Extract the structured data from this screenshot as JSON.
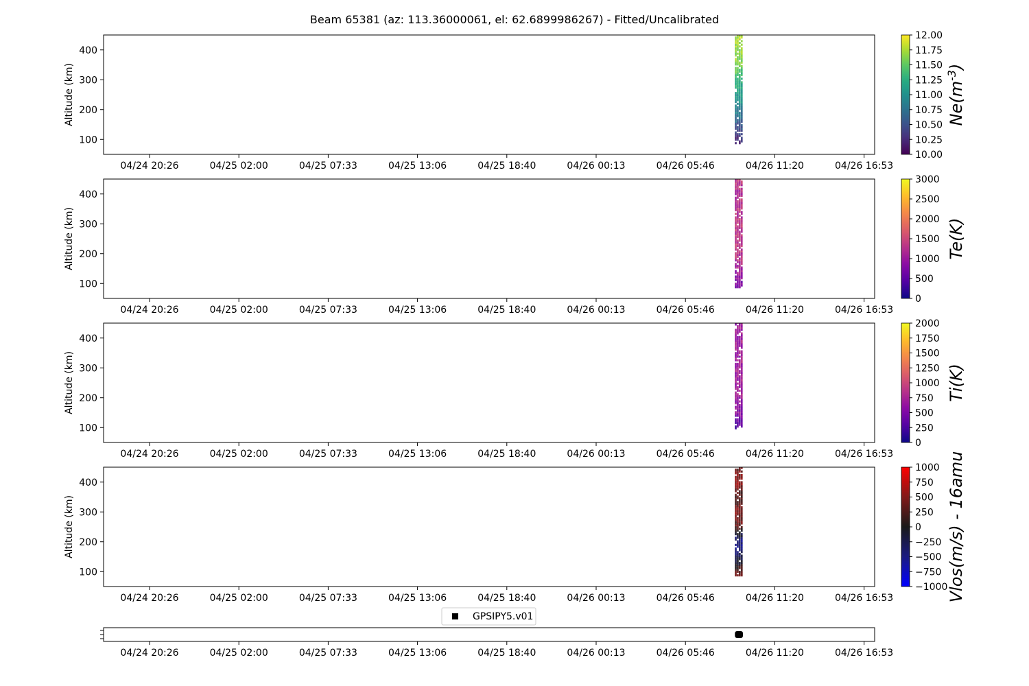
{
  "title": "Beam 65381 (az: 113.36000061, el: 62.6899986267) - Fitted/Uncalibrated",
  "x_tick_labels": [
    "04/24 20:26",
    "04/25 02:00",
    "04/25 07:33",
    "04/25 13:06",
    "04/25 18:40",
    "04/26 00:13",
    "04/26 05:46",
    "04/26 11:20",
    "04/26 16:53"
  ],
  "y_ticks": [
    100,
    200,
    300,
    400
  ],
  "legend_label": "GPSIPY5.v01",
  "chart_data": [
    {
      "type": "heatmap",
      "ylabel": "Altitude (km)",
      "colorbar_label": "Ne(m^{-3})",
      "colormap": "viridis",
      "clim": [
        10.0,
        12.0
      ],
      "colorbar_ticks": [
        "10.00",
        "10.25",
        "10.50",
        "10.75",
        "11.00",
        "11.25",
        "11.50",
        "11.75",
        "12.00"
      ],
      "ylim": [
        50,
        450
      ],
      "time_window": [
        "04/26 08:55",
        "04/26 09:25"
      ],
      "altitude_range_km": [
        85,
        450
      ],
      "profile": [
        {
          "alt": 90,
          "value": 10.2
        },
        {
          "alt": 150,
          "value": 10.6
        },
        {
          "alt": 200,
          "value": 10.9
        },
        {
          "alt": 250,
          "value": 11.1
        },
        {
          "alt": 300,
          "value": 11.3
        },
        {
          "alt": 350,
          "value": 11.6
        },
        {
          "alt": 400,
          "value": 11.7
        },
        {
          "alt": 450,
          "value": 11.8
        }
      ]
    },
    {
      "type": "heatmap",
      "ylabel": "Altitude (km)",
      "colorbar_label": "Te(K)",
      "colormap": "plasma",
      "clim": [
        0,
        3000
      ],
      "colorbar_ticks": [
        "0",
        "500",
        "1000",
        "1500",
        "2000",
        "2500",
        "3000"
      ],
      "ylim": [
        50,
        450
      ],
      "time_window": [
        "04/26 08:55",
        "04/26 09:25"
      ],
      "altitude_range_km": [
        85,
        450
      ],
      "profile": [
        {
          "alt": 90,
          "value": 700
        },
        {
          "alt": 150,
          "value": 1100
        },
        {
          "alt": 200,
          "value": 1300
        },
        {
          "alt": 250,
          "value": 1400
        },
        {
          "alt": 300,
          "value": 1300
        },
        {
          "alt": 350,
          "value": 1300
        },
        {
          "alt": 400,
          "value": 1200
        },
        {
          "alt": 450,
          "value": 1400
        }
      ]
    },
    {
      "type": "heatmap",
      "ylabel": "Altitude (km)",
      "colorbar_label": "Ti(K)",
      "colormap": "plasma",
      "clim": [
        0,
        2000
      ],
      "colorbar_ticks": [
        "0",
        "250",
        "500",
        "750",
        "1000",
        "1250",
        "1500",
        "1750",
        "2000"
      ],
      "ylim": [
        50,
        450
      ],
      "time_window": [
        "04/26 08:55",
        "04/26 09:25"
      ],
      "altitude_range_km": [
        95,
        450
      ],
      "profile": [
        {
          "alt": 100,
          "value": 300
        },
        {
          "alt": 150,
          "value": 550
        },
        {
          "alt": 200,
          "value": 650
        },
        {
          "alt": 250,
          "value": 700
        },
        {
          "alt": 300,
          "value": 700
        },
        {
          "alt": 350,
          "value": 700
        },
        {
          "alt": 400,
          "value": 700
        },
        {
          "alt": 450,
          "value": 700
        }
      ]
    },
    {
      "type": "heatmap",
      "ylabel": "Altitude (km)",
      "colorbar_label": "Vlos(m/s) - 16amu",
      "colormap": "blue-black-red",
      "clim": [
        -1000,
        1000
      ],
      "colorbar_ticks": [
        "−1000",
        "−750",
        "−500",
        "−250",
        "0",
        "250",
        "500",
        "750",
        "1000"
      ],
      "ylim": [
        50,
        450
      ],
      "time_window": [
        "04/26 08:55",
        "04/26 09:25"
      ],
      "altitude_range_km": [
        85,
        450
      ],
      "profile": [
        {
          "alt": 90,
          "value": 400
        },
        {
          "alt": 150,
          "value": -300
        },
        {
          "alt": 200,
          "value": -500
        },
        {
          "alt": 250,
          "value": 300
        },
        {
          "alt": 300,
          "value": 500
        },
        {
          "alt": 350,
          "value": 200
        },
        {
          "alt": 400,
          "value": 600
        },
        {
          "alt": 450,
          "value": 300
        }
      ]
    },
    {
      "type": "scatter",
      "series": [
        {
          "name": "GPSIPY5.v01",
          "marker": "square",
          "color": "#000000",
          "x": [
            "04/26 08:55",
            "04/26 09:25"
          ]
        }
      ]
    }
  ]
}
